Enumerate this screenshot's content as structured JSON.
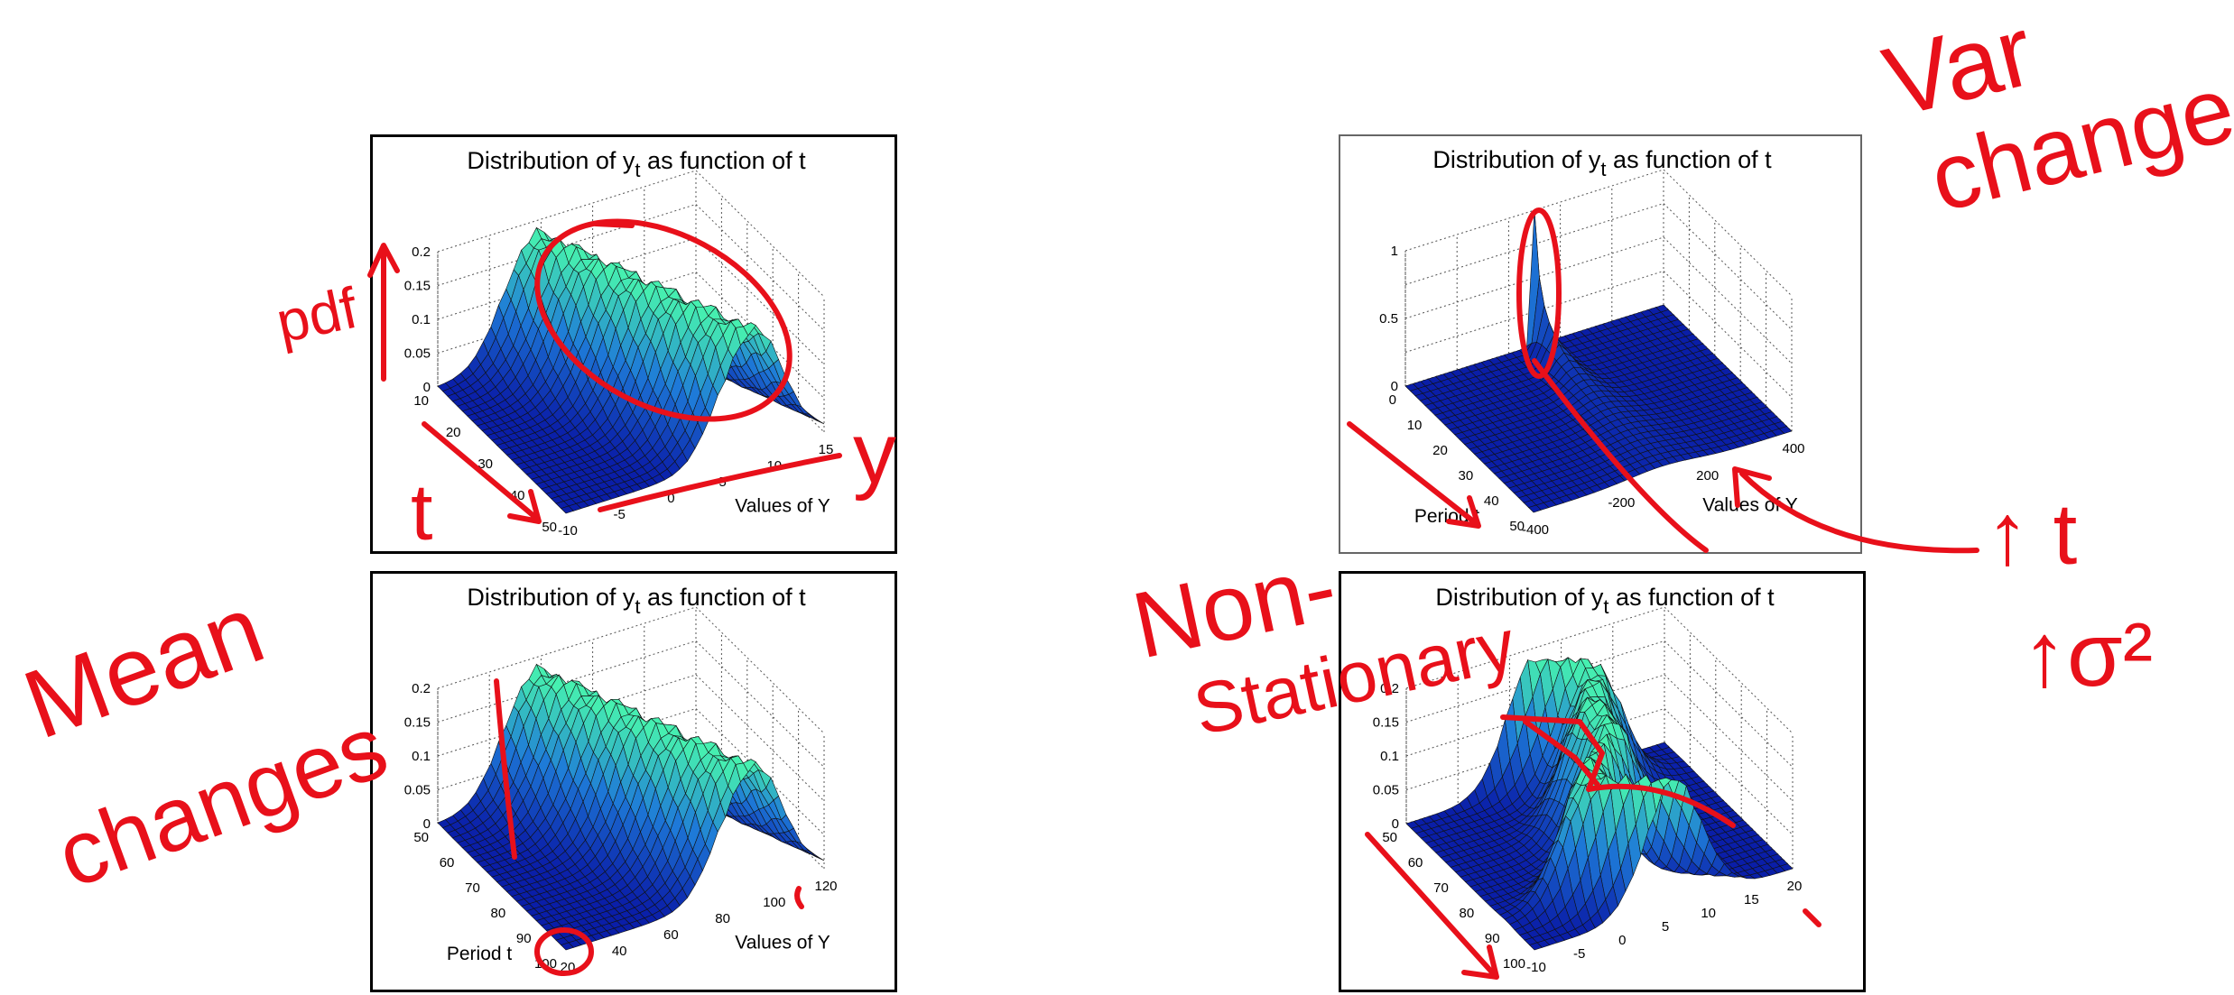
{
  "ink_color": "#e8101a",
  "surface_colors": {
    "low": "#0a1ea8",
    "mid": "#1e7ad8",
    "high": "#46f0b0"
  },
  "chart_data": [
    {
      "id": "top-left",
      "type": "surface",
      "title_main": "Distribution of y",
      "title_sub": "t",
      "title_rest": " as function of t",
      "ylabel": "",
      "xlabel": "Values of Y",
      "z_ticks": [
        "0",
        "0.05",
        "0.1",
        "0.15",
        "0.2"
      ],
      "t_ticks": [
        "10",
        "20",
        "30",
        "40",
        "50"
      ],
      "y_ticks": [
        "-10",
        "-5",
        "0",
        "5",
        "10",
        "15"
      ],
      "zlim": [
        0,
        0.2
      ],
      "surface": {
        "kind": "ridge",
        "mean_start": -1,
        "mean_end": 5,
        "sd": 2.5,
        "peak": 0.2
      }
    },
    {
      "id": "bottom-left",
      "type": "surface",
      "title_main": "Distribution of y",
      "title_sub": "t",
      "title_rest": " as function of t",
      "ylabel": "Period t",
      "xlabel": "Values of Y",
      "z_ticks": [
        "0",
        "0.05",
        "0.1",
        "0.15",
        "0.2"
      ],
      "t_ticks": [
        "50",
        "60",
        "70",
        "80",
        "90",
        "100"
      ],
      "y_ticks": [
        "20",
        "40",
        "60",
        "80",
        "100",
        "120"
      ],
      "zlim": [
        0,
        0.2
      ],
      "surface": {
        "kind": "ridge",
        "mean_start": 50,
        "mean_end": 100,
        "sd": 10,
        "peak": 0.17
      }
    },
    {
      "id": "top-right",
      "type": "surface",
      "title_main": "Distribution of y",
      "title_sub": "t",
      "title_rest": " as function of t",
      "ylabel": "Period t",
      "xlabel": "Values of Y",
      "z_ticks": [
        "0",
        "0.5",
        "1"
      ],
      "t_ticks": [
        "0",
        "10",
        "20",
        "30",
        "40",
        "50"
      ],
      "y_ticks": [
        "-400",
        "-200",
        "200",
        "400"
      ],
      "zlim": [
        0,
        1
      ],
      "surface": {
        "kind": "spike",
        "mean": 0,
        "peak": 1
      }
    },
    {
      "id": "bottom-right",
      "type": "surface",
      "title_main": "Distribution of y",
      "title_sub": "t",
      "title_rest": " as function of t",
      "ylabel": "",
      "xlabel": "",
      "z_ticks": [
        "0",
        "0.05",
        "0.1",
        "0.15",
        "0.2"
      ],
      "t_ticks": [
        "50",
        "60",
        "70",
        "80",
        "90",
        "100"
      ],
      "y_ticks": [
        "-10",
        "-5",
        "0",
        "5",
        "10",
        "15",
        "20"
      ],
      "zlim": [
        0,
        0.2
      ],
      "surface": {
        "kind": "wander",
        "mean_start": 0,
        "mean_end": 5,
        "sd": 3,
        "peak": 0.18
      }
    }
  ],
  "annotations": {
    "pdf": "pdf",
    "t": "t",
    "y": "y",
    "mean": "Mean",
    "changes_left": "changes",
    "var": "Var",
    "changes_right": "changes",
    "non": "Non-",
    "stationary": "Stationary",
    "up_t": "↑ t",
    "sigma_sq": "↑σ²"
  }
}
